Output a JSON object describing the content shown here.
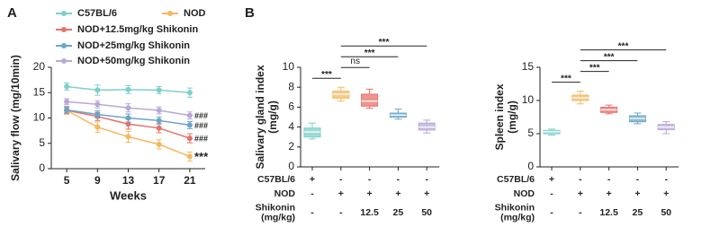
{
  "chart_data": [
    {
      "type": "line",
      "panel_label": "A",
      "xlabel": "Weeks",
      "ylabel": "Salivary flow (mg/10min)",
      "x": [
        5,
        9,
        13,
        17,
        21
      ],
      "xlim": [
        3,
        23
      ],
      "xticks": [
        5,
        9,
        13,
        17,
        21
      ],
      "ylim": [
        0,
        20
      ],
      "yticks": [
        0,
        5,
        10,
        15,
        20
      ],
      "series": [
        {
          "name": "C57BL/6",
          "color": "#7ecfc9",
          "values": [
            16.2,
            15.5,
            15.6,
            15.5,
            15.0
          ],
          "errors": [
            0.7,
            1.0,
            0.8,
            0.7,
            0.9
          ]
        },
        {
          "name": "NOD",
          "color": "#f5b860",
          "values": [
            11.5,
            8.2,
            6.3,
            4.8,
            2.4
          ],
          "errors": [
            0.8,
            1.0,
            1.1,
            0.9,
            0.9
          ],
          "end_label": "***"
        },
        {
          "name": "NOD+12.5mg/kg Shikonin",
          "color": "#e8706a",
          "values": [
            11.5,
            10.3,
            8.8,
            8.0,
            6.0
          ],
          "errors": [
            0.6,
            0.8,
            1.0,
            0.9,
            0.9
          ],
          "end_label": "###"
        },
        {
          "name": "NOD+25mg/kg Shikonin",
          "color": "#6aa5c9",
          "values": [
            11.6,
            10.7,
            10.0,
            9.5,
            8.6
          ],
          "errors": [
            0.6,
            0.7,
            0.8,
            0.7,
            0.7
          ],
          "end_label": "###"
        },
        {
          "name": "NOD+50mg/kg Shikonin",
          "color": "#b8a8d8",
          "values": [
            13.2,
            12.7,
            12.0,
            11.5,
            10.5
          ],
          "errors": [
            0.6,
            0.7,
            0.8,
            0.7,
            0.7
          ],
          "end_label": "###"
        }
      ]
    },
    {
      "type": "box",
      "panel_label": "B",
      "ylabel": [
        "Salivary gland index",
        "(mg/g)"
      ],
      "ylim": [
        0,
        10
      ],
      "yticks": [
        0,
        2,
        4,
        6,
        8,
        10
      ],
      "colors": [
        "#7ecfc9",
        "#f5b860",
        "#e8706a",
        "#6aa5c9",
        "#b8a8d8"
      ],
      "boxes": [
        {
          "min": 2.8,
          "q1": 3.0,
          "median": 3.5,
          "q3": 3.9,
          "max": 4.4
        },
        {
          "min": 6.6,
          "q1": 6.9,
          "median": 7.3,
          "q3": 7.6,
          "max": 8.0
        },
        {
          "min": 5.9,
          "q1": 6.1,
          "median": 6.6,
          "q3": 7.3,
          "max": 7.8
        },
        {
          "min": 4.8,
          "q1": 5.0,
          "median": 5.2,
          "q3": 5.4,
          "max": 5.8
        },
        {
          "min": 3.4,
          "q1": 3.7,
          "median": 4.0,
          "q3": 4.4,
          "max": 4.7
        }
      ],
      "significance": [
        {
          "from": 0,
          "to": 1,
          "label": "***"
        },
        {
          "from": 1,
          "to": 2,
          "label": "ns"
        },
        {
          "from": 1,
          "to": 3,
          "label": "***"
        },
        {
          "from": 1,
          "to": 4,
          "label": "***"
        }
      ],
      "table": [
        {
          "label": [
            "C57BL/6"
          ],
          "cells": [
            "+",
            "-",
            "-",
            "-",
            "-"
          ]
        },
        {
          "label": [
            "NOD"
          ],
          "cells": [
            "-",
            "+",
            "+",
            "+",
            "+"
          ]
        },
        {
          "label": [
            "Shikonin",
            "(mg/kg)"
          ],
          "cells": [
            "-",
            "-",
            "12.5",
            "25",
            "50"
          ]
        }
      ]
    },
    {
      "type": "box",
      "ylabel": [
        "Spleen index",
        "(mg/g)"
      ],
      "ylim": [
        0,
        15
      ],
      "yticks": [
        0,
        5,
        10,
        15
      ],
      "colors": [
        "#7ecfc9",
        "#f5b860",
        "#e8706a",
        "#6aa5c9",
        "#b8a8d8"
      ],
      "boxes": [
        {
          "min": 4.8,
          "q1": 5.0,
          "median": 5.3,
          "q3": 5.5,
          "max": 5.7
        },
        {
          "min": 9.5,
          "q1": 10.0,
          "median": 10.4,
          "q3": 10.8,
          "max": 11.4
        },
        {
          "min": 8.0,
          "q1": 8.2,
          "median": 8.6,
          "q3": 9.0,
          "max": 9.3
        },
        {
          "min": 6.5,
          "q1": 6.8,
          "median": 7.3,
          "q3": 7.7,
          "max": 8.1
        },
        {
          "min": 5.0,
          "q1": 5.6,
          "median": 6.0,
          "q3": 6.4,
          "max": 6.8
        }
      ],
      "significance": [
        {
          "from": 0,
          "to": 1,
          "label": "***"
        },
        {
          "from": 1,
          "to": 2,
          "label": "***"
        },
        {
          "from": 1,
          "to": 3,
          "label": "***"
        },
        {
          "from": 1,
          "to": 4,
          "label": "***"
        }
      ],
      "table": [
        {
          "label": [
            "C57BL/6"
          ],
          "cells": [
            "+",
            "-",
            "-",
            "-",
            "-"
          ]
        },
        {
          "label": [
            "NOD"
          ],
          "cells": [
            "-",
            "+",
            "+",
            "+",
            "+"
          ]
        },
        {
          "label": [
            "Shikonin",
            "(mg/kg)"
          ],
          "cells": [
            "-",
            "-",
            "12.5",
            "25",
            "50"
          ]
        }
      ]
    }
  ]
}
